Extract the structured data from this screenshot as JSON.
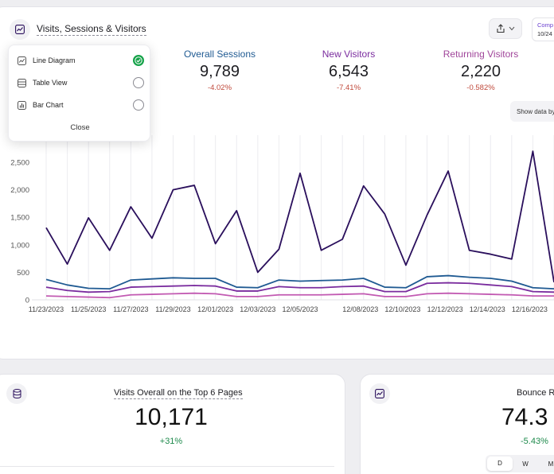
{
  "header": {
    "title": "Visits, Sessions & Visitors",
    "compare_label": "Comp",
    "compare_date": "10/24"
  },
  "stats": [
    {
      "label": "Overall Sessions",
      "value": "9,789",
      "change": "-4.02%",
      "color": "#1f5a92"
    },
    {
      "label": "New Visitors",
      "value": "6,543",
      "change": "-7.41%",
      "color": "#7a2c9e"
    },
    {
      "label": "Returning Visitors",
      "value": "2,220",
      "change": "-0.582%",
      "color": "#a0459a"
    }
  ],
  "dropdown": {
    "items": [
      {
        "label": "Line Diagram",
        "icon": "line-chart-icon",
        "selected": true
      },
      {
        "label": "Table View",
        "icon": "table-icon",
        "selected": false
      },
      {
        "label": "Bar Chart",
        "icon": "bar-chart-icon",
        "selected": false
      }
    ],
    "close_label": "Close"
  },
  "show_data_label": "Show data by",
  "chart_data": {
    "type": "line",
    "x_tick_labels": [
      "11/23/2023",
      "11/25/2023",
      "11/27/2023",
      "11/29/2023",
      "12/01/2023",
      "12/03/2023",
      "12/05/2023",
      "12/08/2023",
      "12/10/2023",
      "12/12/2023",
      "12/14/2023",
      "12/16/2023"
    ],
    "y_tick_labels": [
      "0",
      "500",
      "1,000",
      "1,500",
      "2,000",
      "2,500"
    ],
    "ylim": [
      0,
      2800
    ],
    "grid": "vertical",
    "series": [
      {
        "color": "#2a0f5c",
        "values": [
          1310,
          650,
          1490,
          900,
          1690,
          1120,
          2000,
          2080,
          1020,
          1620,
          500,
          920,
          2300,
          900,
          1100,
          2070,
          1560,
          630,
          1540,
          2340,
          900,
          830,
          740,
          2700,
          320
        ]
      },
      {
        "color": "#1f5a92",
        "values": [
          370,
          270,
          210,
          200,
          360,
          380,
          400,
          390,
          390,
          230,
          220,
          360,
          340,
          350,
          360,
          390,
          230,
          220,
          420,
          440,
          410,
          390,
          340,
          220,
          200
        ]
      },
      {
        "color": "#7a2c9e",
        "values": [
          230,
          170,
          140,
          150,
          230,
          240,
          250,
          260,
          250,
          160,
          160,
          240,
          220,
          220,
          240,
          250,
          150,
          150,
          300,
          310,
          300,
          270,
          240,
          150,
          140
        ]
      },
      {
        "color": "#c25ab2",
        "values": [
          70,
          60,
          50,
          40,
          90,
          100,
          110,
          120,
          110,
          60,
          60,
          90,
          90,
          90,
          100,
          110,
          60,
          60,
          110,
          120,
          110,
          100,
          90,
          70,
          70
        ]
      }
    ]
  },
  "pages_card": {
    "title": "Visits Overall on the Top 6 Pages",
    "value": "10,171",
    "change": "+31%"
  },
  "bounce_card": {
    "title": "Bounce R",
    "value": "74.3",
    "change": "-5.43%",
    "periods": [
      "D",
      "W",
      "M"
    ]
  }
}
